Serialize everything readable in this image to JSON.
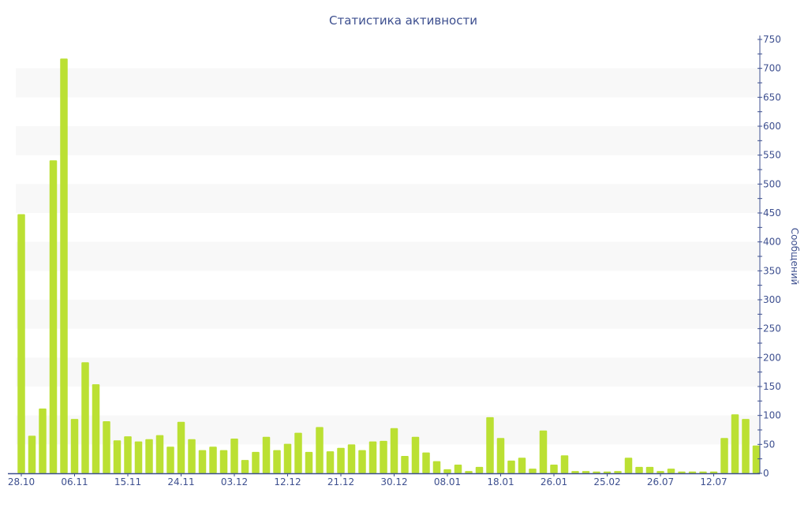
{
  "chart_data": {
    "type": "bar",
    "title": "Статистика активности",
    "ylabel": "Сообщений",
    "xlabel": "",
    "ylim": [
      0,
      750
    ],
    "y_ticks": [
      0,
      50,
      100,
      150,
      200,
      250,
      300,
      350,
      400,
      450,
      500,
      550,
      600,
      650,
      700,
      750
    ],
    "y_axis_position": "right",
    "grid": "alternating horizontal bands",
    "legend": "none",
    "bar_color": "#bbe033",
    "axis_color": "#3d4f8f",
    "band_color": "#f8f8f8",
    "x_tick_labels": [
      "28.10",
      "06.11",
      "15.11",
      "24.11",
      "03.12",
      "12.12",
      "21.12",
      "30.12",
      "08.01",
      "18.01",
      "26.01",
      "25.02",
      "26.07",
      "12.07"
    ],
    "x_tick_every": 5,
    "values": [
      448,
      65,
      112,
      541,
      717,
      94,
      192,
      154,
      90,
      57,
      64,
      55,
      59,
      66,
      46,
      89,
      59,
      40,
      46,
      40,
      60,
      23,
      37,
      63,
      40,
      51,
      70,
      37,
      80,
      38,
      44,
      50,
      40,
      55,
      56,
      78,
      30,
      63,
      36,
      21,
      7,
      15,
      4,
      11,
      97,
      61,
      22,
      27,
      8,
      74,
      15,
      31,
      4,
      4,
      3,
      3,
      4,
      27,
      11,
      11,
      4,
      8,
      3,
      3,
      3,
      3,
      61,
      102,
      94,
      48
    ]
  }
}
